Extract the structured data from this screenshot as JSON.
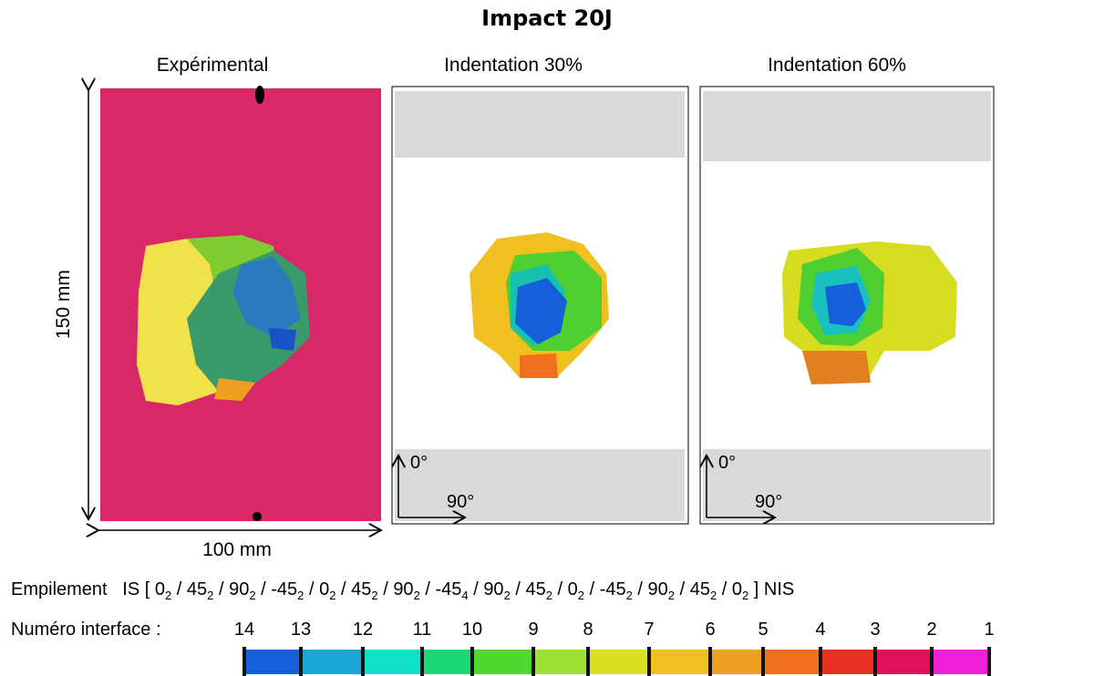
{
  "title": "Impact 20J",
  "panels": [
    {
      "label": "Expérimental"
    },
    {
      "label": "Indentation 30%",
      "axes": {
        "y": "0°",
        "x": "90°"
      }
    },
    {
      "label": "Indentation 60%",
      "axes": {
        "y": "0°",
        "x": "90°"
      }
    }
  ],
  "dimensions": {
    "height": "150 mm",
    "width": "100 mm"
  },
  "stacking": {
    "label": "Empilement",
    "start": "IS [",
    "end": "] NIS",
    "separator": "/",
    "layers": [
      {
        "angle": "0",
        "count": "2"
      },
      {
        "angle": "45",
        "count": "2"
      },
      {
        "angle": "90",
        "count": "2"
      },
      {
        "angle": "-45",
        "count": "2"
      },
      {
        "angle": "0",
        "count": "2"
      },
      {
        "angle": "45",
        "count": "2"
      },
      {
        "angle": "90",
        "count": "2"
      },
      {
        "angle": "-45",
        "count": "4"
      },
      {
        "angle": "90",
        "count": "2"
      },
      {
        "angle": "45",
        "count": "2"
      },
      {
        "angle": "0",
        "count": "2"
      },
      {
        "angle": "-45",
        "count": "2"
      },
      {
        "angle": "90",
        "count": "2"
      },
      {
        "angle": "45",
        "count": "2"
      },
      {
        "angle": "0",
        "count": "2"
      }
    ]
  },
  "interfaces": {
    "label": "Numéro interface :",
    "numbers": [
      14,
      13,
      12,
      11,
      10,
      9,
      8,
      7,
      6,
      5,
      4,
      3,
      2,
      1
    ],
    "colors": [
      "#1560d8",
      "#1aa6d6",
      "#10e0c8",
      "#18d878",
      "#50d830",
      "#a0e030",
      "#d8e020",
      "#f0c020",
      "#f0a020",
      "#f07020",
      "#e83020",
      "#e0105a",
      "#f020d8"
    ]
  }
}
